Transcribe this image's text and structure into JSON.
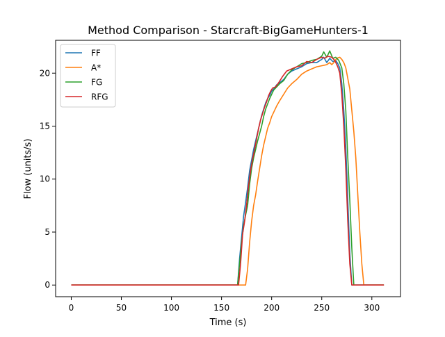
{
  "chart_data": {
    "type": "line",
    "title": "Method Comparison - Starcraft-BigGameHunters-1",
    "xlabel": "Time (s)",
    "ylabel": "Flow (units/s)",
    "xlim": [
      -15.6,
      328.6
    ],
    "ylim": [
      -1.1,
      23.1
    ],
    "xticks": [
      0,
      50,
      100,
      150,
      200,
      250,
      300
    ],
    "yticks": [
      0,
      5,
      10,
      15,
      20
    ],
    "xtick_labels": [
      "0",
      "50",
      "100",
      "150",
      "200",
      "250",
      "300"
    ],
    "ytick_labels": [
      "0",
      "5",
      "10",
      "15",
      "20"
    ],
    "grid": false,
    "legend_position": "top-left",
    "series": [
      {
        "name": "FF",
        "color": "#1f77b4",
        "points": [
          [
            0,
            0
          ],
          [
            160,
            0
          ],
          [
            166,
            0
          ],
          [
            168,
            2.5
          ],
          [
            170,
            4.5
          ],
          [
            172,
            6.5
          ],
          [
            174,
            7.8
          ],
          [
            176,
            9.2
          ],
          [
            178,
            10.8
          ],
          [
            180,
            11.8
          ],
          [
            182,
            12.8
          ],
          [
            184,
            13.6
          ],
          [
            186,
            14.4
          ],
          [
            188,
            15.2
          ],
          [
            190,
            16.0
          ],
          [
            192,
            16.6
          ],
          [
            194,
            17.2
          ],
          [
            196,
            17.6
          ],
          [
            198,
            17.9
          ],
          [
            200,
            18.3
          ],
          [
            202,
            18.5
          ],
          [
            205,
            18.9
          ],
          [
            208,
            19.1
          ],
          [
            212,
            19.4
          ],
          [
            216,
            19.9
          ],
          [
            220,
            20.2
          ],
          [
            225,
            20.4
          ],
          [
            230,
            20.6
          ],
          [
            235,
            20.9
          ],
          [
            240,
            21.0
          ],
          [
            245,
            21.0
          ],
          [
            250,
            21.3
          ],
          [
            252,
            21.5
          ],
          [
            255,
            21.0
          ],
          [
            258,
            21.4
          ],
          [
            261,
            21.1
          ],
          [
            264,
            21.2
          ],
          [
            266,
            20.9
          ],
          [
            268,
            20.5
          ],
          [
            270,
            19.0
          ],
          [
            272,
            16.5
          ],
          [
            274,
            13.0
          ],
          [
            276,
            8.0
          ],
          [
            278,
            3.0
          ],
          [
            280,
            0
          ],
          [
            285,
            0
          ],
          [
            312,
            0
          ]
        ]
      },
      {
        "name": "A*",
        "color": "#ff7f0e",
        "points": [
          [
            0,
            0
          ],
          [
            170,
            0
          ],
          [
            174,
            0
          ],
          [
            176,
            1.5
          ],
          [
            178,
            4.0
          ],
          [
            180,
            6.0
          ],
          [
            182,
            7.5
          ],
          [
            184,
            8.5
          ],
          [
            186,
            9.8
          ],
          [
            188,
            11.0
          ],
          [
            190,
            12.2
          ],
          [
            192,
            13.2
          ],
          [
            194,
            14.0
          ],
          [
            196,
            14.8
          ],
          [
            198,
            15.3
          ],
          [
            200,
            15.9
          ],
          [
            202,
            16.3
          ],
          [
            205,
            16.9
          ],
          [
            208,
            17.4
          ],
          [
            212,
            18.0
          ],
          [
            216,
            18.6
          ],
          [
            220,
            19.0
          ],
          [
            225,
            19.4
          ],
          [
            230,
            19.9
          ],
          [
            235,
            20.2
          ],
          [
            240,
            20.4
          ],
          [
            245,
            20.6
          ],
          [
            250,
            20.7
          ],
          [
            255,
            20.8
          ],
          [
            258,
            21.0
          ],
          [
            260,
            20.8
          ],
          [
            262,
            21.0
          ],
          [
            265,
            21.4
          ],
          [
            268,
            21.5
          ],
          [
            270,
            21.3
          ],
          [
            272,
            21.0
          ],
          [
            274,
            20.5
          ],
          [
            276,
            19.5
          ],
          [
            278,
            18.5
          ],
          [
            280,
            16.5
          ],
          [
            282,
            14.5
          ],
          [
            284,
            12.0
          ],
          [
            286,
            8.5
          ],
          [
            288,
            5.0
          ],
          [
            290,
            2.0
          ],
          [
            292,
            0
          ],
          [
            300,
            0
          ],
          [
            312,
            0
          ]
        ]
      },
      {
        "name": "FG",
        "color": "#2ca02c",
        "points": [
          [
            0,
            0
          ],
          [
            163,
            0
          ],
          [
            166,
            0
          ],
          [
            168,
            2.0
          ],
          [
            170,
            4.0
          ],
          [
            172,
            5.6
          ],
          [
            174,
            6.6
          ],
          [
            176,
            7.5
          ],
          [
            178,
            9.5
          ],
          [
            180,
            11.0
          ],
          [
            182,
            12.0
          ],
          [
            184,
            12.8
          ],
          [
            186,
            13.6
          ],
          [
            188,
            14.3
          ],
          [
            190,
            15.0
          ],
          [
            192,
            15.9
          ],
          [
            194,
            16.6
          ],
          [
            196,
            17.1
          ],
          [
            198,
            17.6
          ],
          [
            200,
            18.0
          ],
          [
            202,
            18.4
          ],
          [
            205,
            18.7
          ],
          [
            208,
            19.0
          ],
          [
            212,
            19.3
          ],
          [
            216,
            19.9
          ],
          [
            220,
            20.3
          ],
          [
            225,
            20.6
          ],
          [
            230,
            20.9
          ],
          [
            235,
            21.0
          ],
          [
            240,
            21.2
          ],
          [
            245,
            21.3
          ],
          [
            250,
            21.6
          ],
          [
            252,
            22.0
          ],
          [
            255,
            21.5
          ],
          [
            258,
            22.1
          ],
          [
            261,
            21.4
          ],
          [
            264,
            21.5
          ],
          [
            267,
            21.2
          ],
          [
            270,
            20.5
          ],
          [
            272,
            19.0
          ],
          [
            274,
            16.5
          ],
          [
            276,
            12.0
          ],
          [
            278,
            8.0
          ],
          [
            280,
            3.5
          ],
          [
            282,
            0
          ],
          [
            290,
            0
          ],
          [
            312,
            0
          ]
        ]
      },
      {
        "name": "RFG",
        "color": "#d62728",
        "points": [
          [
            0,
            0
          ],
          [
            164,
            0
          ],
          [
            167,
            0
          ],
          [
            169,
            2.0
          ],
          [
            171,
            4.8
          ],
          [
            173,
            6.0
          ],
          [
            175,
            7.6
          ],
          [
            177,
            9.4
          ],
          [
            179,
            10.8
          ],
          [
            181,
            11.9
          ],
          [
            183,
            12.8
          ],
          [
            185,
            13.8
          ],
          [
            187,
            14.8
          ],
          [
            189,
            15.6
          ],
          [
            191,
            16.2
          ],
          [
            193,
            16.8
          ],
          [
            195,
            17.3
          ],
          [
            197,
            17.9
          ],
          [
            199,
            18.3
          ],
          [
            201,
            18.6
          ],
          [
            204,
            18.7
          ],
          [
            207,
            19.1
          ],
          [
            211,
            19.7
          ],
          [
            215,
            20.2
          ],
          [
            220,
            20.4
          ],
          [
            225,
            20.6
          ],
          [
            230,
            20.7
          ],
          [
            235,
            21.1
          ],
          [
            240,
            21.0
          ],
          [
            245,
            21.3
          ],
          [
            250,
            21.5
          ],
          [
            253,
            21.4
          ],
          [
            256,
            21.6
          ],
          [
            260,
            21.5
          ],
          [
            263,
            21.2
          ],
          [
            266,
            20.6
          ],
          [
            268,
            20.0
          ],
          [
            270,
            18.0
          ],
          [
            272,
            15.0
          ],
          [
            274,
            11.0
          ],
          [
            276,
            6.0
          ],
          [
            278,
            2.0
          ],
          [
            280,
            0
          ],
          [
            290,
            0
          ],
          [
            312,
            0
          ]
        ]
      }
    ]
  }
}
